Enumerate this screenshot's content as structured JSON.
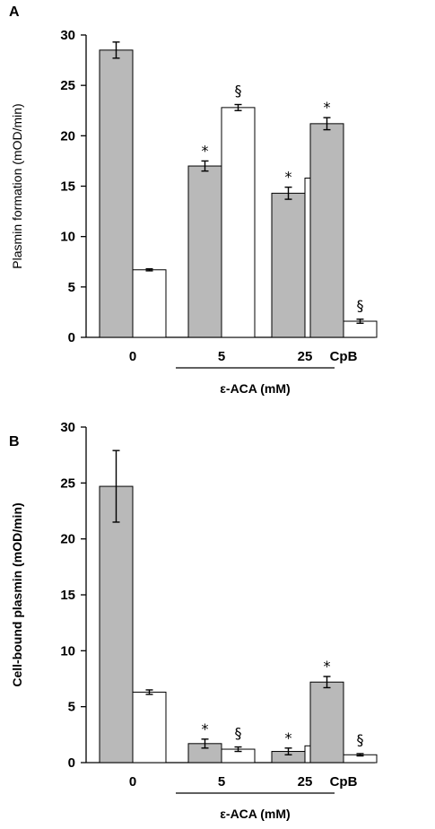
{
  "chart_data": [
    {
      "type": "bar",
      "panel_label": "A",
      "ylabel": "Plasmin formation (mOD/min)",
      "ylim": [
        0,
        30
      ],
      "yticks": [
        0,
        5,
        10,
        15,
        20,
        25,
        30
      ],
      "categories": [
        "0",
        "5",
        "25",
        "CpB"
      ],
      "group_label": "ε-ACA (mM)",
      "grid": false,
      "series": [
        {
          "color": "#b9b9b9",
          "values": [
            28.5,
            17.0,
            14.3,
            21.2
          ],
          "errors": [
            0.8,
            0.5,
            0.6,
            0.6
          ],
          "marks": [
            "",
            "*",
            "*",
            "*"
          ]
        },
        {
          "color": "#ffffff",
          "values": [
            6.7,
            22.8,
            15.8,
            1.6
          ],
          "errors": [
            0.1,
            0.3,
            0.7,
            0.2
          ],
          "marks": [
            "",
            "§",
            "§",
            "§"
          ]
        }
      ]
    },
    {
      "type": "bar",
      "panel_label": "B",
      "ylabel": "Cell-bound plasmin (mOD/min)",
      "ylim": [
        0,
        30
      ],
      "yticks": [
        0,
        5,
        10,
        15,
        20,
        25,
        30
      ],
      "categories": [
        "0",
        "5",
        "25",
        "CpB"
      ],
      "group_label": "ε-ACA (mM)",
      "grid": false,
      "series": [
        {
          "color": "#b9b9b9",
          "values": [
            24.7,
            1.7,
            1.0,
            7.2
          ],
          "errors": [
            3.2,
            0.4,
            0.3,
            0.5
          ],
          "marks": [
            "",
            "*",
            "*",
            "*"
          ]
        },
        {
          "color": "#ffffff",
          "values": [
            6.3,
            1.2,
            1.5,
            0.7
          ],
          "errors": [
            0.2,
            0.2,
            0.6,
            0.1
          ],
          "marks": [
            "",
            "§",
            "§",
            "§"
          ]
        }
      ]
    }
  ]
}
